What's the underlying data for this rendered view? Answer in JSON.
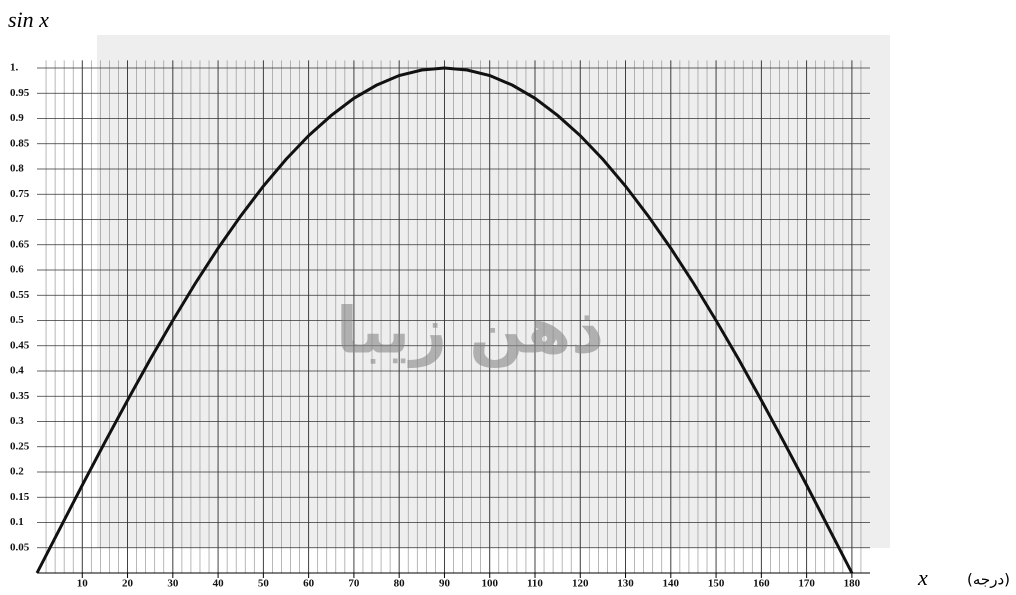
{
  "chart_data": {
    "type": "line",
    "y_label": "sin x",
    "x_label": "x",
    "x_unit": "(درجه)",
    "watermark": "ذهن زیبا",
    "x": [
      0,
      5,
      10,
      15,
      20,
      25,
      30,
      35,
      40,
      45,
      50,
      55,
      60,
      65,
      70,
      75,
      80,
      85,
      90,
      95,
      100,
      105,
      110,
      115,
      120,
      125,
      130,
      135,
      140,
      145,
      150,
      155,
      160,
      165,
      170,
      175,
      180
    ],
    "series": [
      {
        "name": "sin x",
        "color": "#111111",
        "values": [
          0,
          0.087,
          0.174,
          0.259,
          0.342,
          0.423,
          0.5,
          0.574,
          0.643,
          0.707,
          0.766,
          0.819,
          0.866,
          0.906,
          0.94,
          0.966,
          0.985,
          0.996,
          1,
          0.996,
          0.985,
          0.966,
          0.94,
          0.906,
          0.866,
          0.819,
          0.766,
          0.707,
          0.643,
          0.574,
          0.5,
          0.423,
          0.342,
          0.259,
          0.174,
          0.087,
          0
        ]
      }
    ],
    "xlim": [
      0,
      184
    ],
    "ylim": [
      0,
      1.015
    ],
    "xticks": [
      10,
      20,
      30,
      40,
      50,
      60,
      70,
      80,
      90,
      100,
      110,
      120,
      130,
      140,
      150,
      160,
      170,
      180
    ],
    "yticks": [
      0.05,
      0.1,
      0.15,
      0.2,
      0.25,
      0.3,
      0.35,
      0.4,
      0.45,
      0.5,
      0.55,
      0.6,
      0.65,
      0.7,
      0.75,
      0.8,
      0.85,
      0.9,
      0.95,
      {
        "value": 1,
        "label": "1."
      }
    ],
    "minor_grid_step": 2,
    "grid": true
  }
}
